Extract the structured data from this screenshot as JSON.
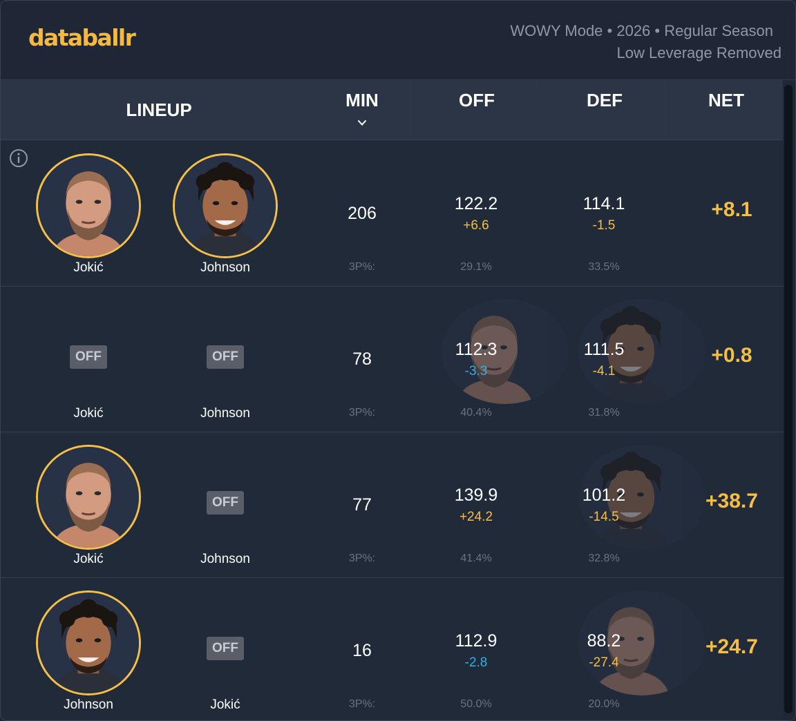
{
  "brand": {
    "logo": "databallr"
  },
  "header": {
    "meta_line1": "WOWY Mode • 2026 • Regular Season",
    "meta_line2": "Low Leverage Removed"
  },
  "columns": {
    "lineup": "LINEUP",
    "min": "MIN",
    "off": "OFF",
    "def": "DEF",
    "net": "NET"
  },
  "colors": {
    "accent": "#f5bf46",
    "negative": "#32aee9",
    "background": "#212a39",
    "header_row": "#2c3545"
  },
  "icons": [
    "info-icon",
    "sort-chevron-down-icon"
  ],
  "rows": [
    {
      "players": [
        {
          "name": "Jokić",
          "status": "on"
        },
        {
          "name": "Johnson",
          "status": "on"
        }
      ],
      "min": "206",
      "off": {
        "value": "122.2",
        "diff": "+6.6",
        "tone": "pos"
      },
      "def": {
        "value": "114.1",
        "diff": "-1.5",
        "tone": "pos"
      },
      "net": "+8.1",
      "three_pt_label": "3P%:",
      "three_pt_off": "29.1%",
      "three_pt_def": "33.5%"
    },
    {
      "players": [
        {
          "name": "Jokić",
          "status": "off",
          "badge": "OFF"
        },
        {
          "name": "Johnson",
          "status": "off",
          "badge": "OFF"
        }
      ],
      "min": "78",
      "off": {
        "value": "112.3",
        "diff": "-3.3",
        "tone": "neg"
      },
      "def": {
        "value": "111.5",
        "diff": "-4.1",
        "tone": "pos"
      },
      "net": "+0.8",
      "three_pt_label": "3P%:",
      "three_pt_off": "40.4%",
      "three_pt_def": "31.8%"
    },
    {
      "players": [
        {
          "name": "Jokić",
          "status": "on"
        },
        {
          "name": "Johnson",
          "status": "off",
          "badge": "OFF"
        }
      ],
      "min": "77",
      "off": {
        "value": "139.9",
        "diff": "+24.2",
        "tone": "pos"
      },
      "def": {
        "value": "101.2",
        "diff": "-14.5",
        "tone": "pos"
      },
      "net": "+38.7",
      "three_pt_label": "3P%:",
      "three_pt_off": "41.4%",
      "three_pt_def": "32.8%"
    },
    {
      "players": [
        {
          "name": "Johnson",
          "status": "on"
        },
        {
          "name": "Jokić",
          "status": "off",
          "badge": "OFF"
        }
      ],
      "min": "16",
      "off": {
        "value": "112.9",
        "diff": "-2.8",
        "tone": "neg"
      },
      "def": {
        "value": "88.2",
        "diff": "-27.4",
        "tone": "pos"
      },
      "net": "+24.7",
      "three_pt_label": "3P%:",
      "three_pt_off": "50.0%",
      "three_pt_def": "20.0%"
    }
  ]
}
